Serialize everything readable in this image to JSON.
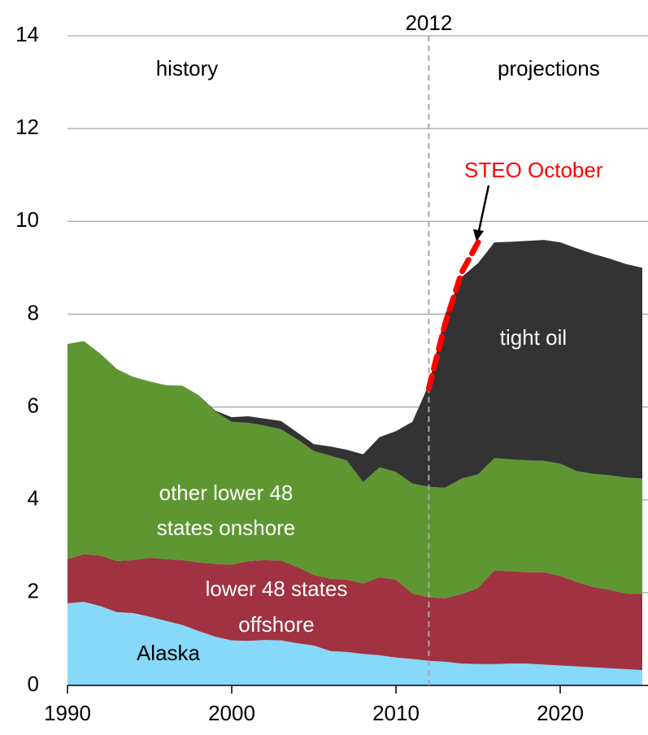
{
  "chart_data": {
    "type": "stacked_area",
    "x": [
      1990,
      1991,
      1992,
      1993,
      1994,
      1995,
      1996,
      1997,
      1998,
      1999,
      2000,
      2001,
      2002,
      2003,
      2004,
      2005,
      2006,
      2007,
      2008,
      2009,
      2010,
      2011,
      2012,
      2013,
      2014,
      2015,
      2016,
      2017,
      2018,
      2019,
      2020,
      2021,
      2022,
      2023,
      2024,
      2025
    ],
    "series": [
      {
        "name": "Alaska",
        "color": "#87d9f9",
        "values": [
          1.77,
          1.8,
          1.71,
          1.58,
          1.56,
          1.48,
          1.39,
          1.3,
          1.17,
          1.05,
          0.97,
          0.96,
          0.98,
          0.97,
          0.91,
          0.86,
          0.74,
          0.72,
          0.68,
          0.65,
          0.6,
          0.57,
          0.53,
          0.51,
          0.47,
          0.46,
          0.46,
          0.47,
          0.47,
          0.45,
          0.43,
          0.41,
          0.39,
          0.37,
          0.35,
          0.33
        ]
      },
      {
        "name": "lower 48 states offshore",
        "color": "#a03241",
        "values": [
          0.95,
          1.03,
          1.09,
          1.1,
          1.14,
          1.27,
          1.33,
          1.4,
          1.48,
          1.57,
          1.63,
          1.72,
          1.72,
          1.72,
          1.64,
          1.52,
          1.56,
          1.56,
          1.52,
          1.68,
          1.68,
          1.41,
          1.37,
          1.37,
          1.5,
          1.64,
          2.02,
          1.99,
          1.97,
          1.99,
          1.93,
          1.82,
          1.73,
          1.69,
          1.63,
          1.64
        ]
      },
      {
        "name": "other lower 48 states onshore",
        "color": "#5e9732",
        "values": [
          4.64,
          4.59,
          4.35,
          4.14,
          3.95,
          3.8,
          3.75,
          3.76,
          3.6,
          3.28,
          3.08,
          2.98,
          2.9,
          2.83,
          2.75,
          2.67,
          2.65,
          2.57,
          2.18,
          2.37,
          2.32,
          2.37,
          2.38,
          2.38,
          2.49,
          2.45,
          2.42,
          2.41,
          2.41,
          2.4,
          2.42,
          2.39,
          2.44,
          2.47,
          2.5,
          2.49
        ]
      },
      {
        "name": "tight oil",
        "color": "#333333",
        "values": [
          0,
          0,
          0,
          0,
          0,
          0,
          0,
          0,
          0,
          0.02,
          0.1,
          0.14,
          0.15,
          0.18,
          0.15,
          0.15,
          0.2,
          0.23,
          0.6,
          0.65,
          0.88,
          1.33,
          2.2,
          3.74,
          4.34,
          4.55,
          4.65,
          4.69,
          4.73,
          4.76,
          4.77,
          4.8,
          4.74,
          4.67,
          4.6,
          4.54
        ]
      }
    ],
    "steo": {
      "name": "STEO October",
      "color": "#ff0000",
      "x": [
        2012,
        2013,
        2014,
        2015
      ],
      "values": [
        6.4,
        7.8,
        8.9,
        9.55
      ]
    },
    "vline_x": 2012,
    "history_label": "history",
    "projections_label": "projections",
    "area_labels": {
      "tight": [
        "tight oil"
      ],
      "onshore": [
        "other lower 48",
        "states onshore"
      ],
      "offshore": [
        "lower 48 states",
        "offshore"
      ],
      "alaska": [
        "Alaska"
      ]
    },
    "xlim": [
      1990,
      2025
    ],
    "xticks": [
      1990,
      2000,
      2010,
      2020
    ],
    "ylim": [
      0,
      14
    ],
    "yticks": [
      0,
      2,
      4,
      6,
      8,
      10,
      12,
      14
    ],
    "grid": true
  }
}
